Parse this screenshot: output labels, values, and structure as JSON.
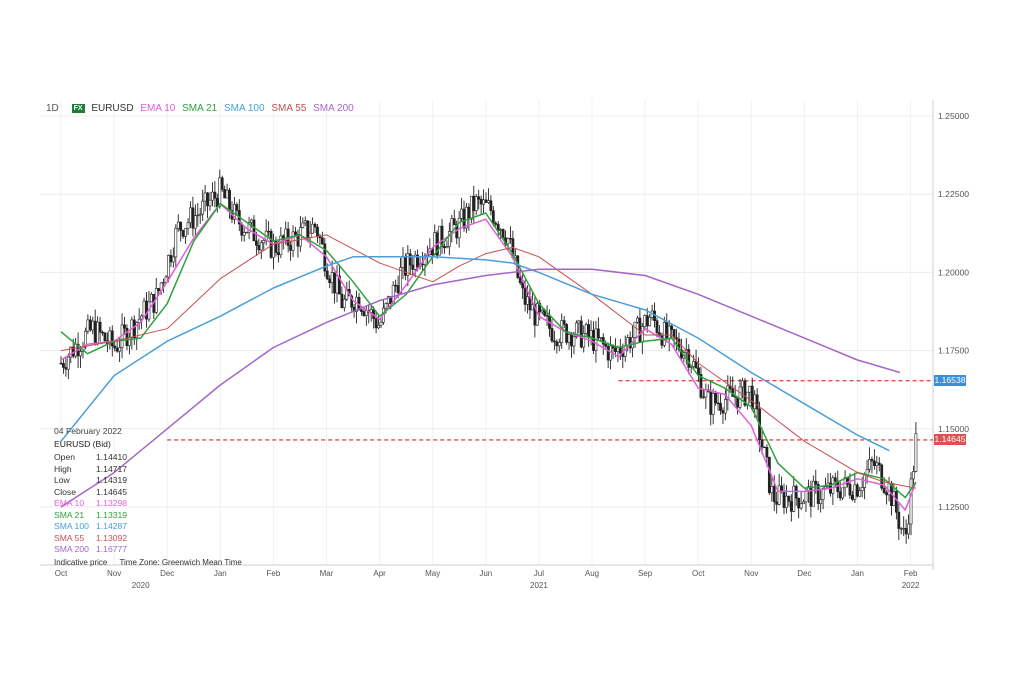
{
  "header": {
    "timeframe": "1D",
    "symbol_badge": "FX",
    "symbol": "EURUSD",
    "indicators": [
      {
        "label": "EMA 10",
        "color": "#e05fd8"
      },
      {
        "label": "SMA 21",
        "color": "#2ea23a"
      },
      {
        "label": "SMA 100",
        "color": "#4a9fd8"
      },
      {
        "label": "SMA 55",
        "color": "#c85050"
      },
      {
        "label": "SMA 200",
        "color": "#a565c8"
      }
    ]
  },
  "info_panel": {
    "date": "04 February 2022",
    "instrument": "EURUSD (Bid)",
    "rows": [
      {
        "label": "Open",
        "value": "1.14410",
        "color": "#333333"
      },
      {
        "label": "High",
        "value": "1.14717",
        "color": "#333333"
      },
      {
        "label": "Low",
        "value": "1.14319",
        "color": "#333333"
      },
      {
        "label": "Close",
        "value": "1.14645",
        "color": "#333333"
      },
      {
        "label": "EMA 10",
        "value": "1.13298",
        "color": "#e05fd8"
      },
      {
        "label": "SMA 21",
        "value": "1.13319",
        "color": "#2ea23a"
      },
      {
        "label": "SMA 100",
        "value": "1.14287",
        "color": "#4a9fd8"
      },
      {
        "label": "SMA 55",
        "value": "1.13092",
        "color": "#c85050"
      },
      {
        "label": "SMA 200",
        "value": "1.16777",
        "color": "#a565c8"
      }
    ]
  },
  "footer_notes": [
    "Indicative price",
    "Time Zone: Greenwich Mean Time"
  ],
  "price_badges": [
    {
      "label": "1.16538",
      "value": 1.16538,
      "color": "#3b8fd8"
    },
    {
      "label": "1.14645",
      "value": 1.14645,
      "color": "#e05050"
    }
  ],
  "chart_data": {
    "type": "line",
    "title": "",
    "xlabel": "",
    "ylabel": "",
    "ylim": [
      1.105,
      1.255
    ],
    "y_ticks": [
      "1.25000",
      "1.22500",
      "1.20000",
      "1.17500",
      "1.15000",
      "1.12500"
    ],
    "y_tick_values": [
      1.25,
      1.225,
      1.2,
      1.175,
      1.15,
      1.125
    ],
    "x_tick_labels": [
      "Oct",
      "Nov",
      "Dec",
      "Jan",
      "Feb",
      "Mar",
      "Apr",
      "May",
      "Jun",
      "Jul",
      "Aug",
      "Sep",
      "Oct",
      "Nov",
      "Dec",
      "Jan",
      "Feb"
    ],
    "x_tick_positions": [
      0,
      1,
      2,
      3,
      4,
      5,
      6,
      7,
      8,
      9,
      10,
      11,
      12,
      13,
      14,
      15,
      16
    ],
    "year_labels": [
      {
        "label": "2020",
        "at": 1.5
      },
      {
        "label": "2021",
        "at": 9
      },
      {
        "label": "2022",
        "at": 16
      }
    ],
    "horizontal_levels": [
      {
        "value": 1.16538,
        "from_month": 10.5,
        "color": "#e05050"
      },
      {
        "value": 1.14645,
        "from_month": 2.0,
        "color": "#e05050"
      }
    ],
    "price": {
      "months": [
        0,
        0.3,
        0.6,
        1.0,
        1.4,
        1.8,
        2.2,
        2.6,
        3.0,
        3.3,
        3.6,
        4.0,
        4.4,
        4.8,
        5.0,
        5.3,
        5.6,
        6.0,
        6.4,
        6.8,
        7.2,
        7.5,
        7.8,
        8.1,
        8.4,
        8.7,
        9.0,
        9.3,
        9.6,
        10.0,
        10.4,
        10.8,
        11.1,
        11.4,
        11.8,
        12.2,
        12.6,
        13.0,
        13.4,
        13.8,
        14.2,
        14.6,
        15.0,
        15.3,
        15.6,
        15.9,
        16.1
      ],
      "close": [
        1.171,
        1.177,
        1.182,
        1.176,
        1.184,
        1.192,
        1.214,
        1.219,
        1.226,
        1.217,
        1.213,
        1.208,
        1.211,
        1.215,
        1.203,
        1.19,
        1.192,
        1.183,
        1.2,
        1.207,
        1.211,
        1.215,
        1.222,
        1.22,
        1.212,
        1.192,
        1.185,
        1.181,
        1.181,
        1.179,
        1.174,
        1.18,
        1.186,
        1.179,
        1.175,
        1.158,
        1.16,
        1.162,
        1.128,
        1.128,
        1.129,
        1.131,
        1.132,
        1.139,
        1.131,
        1.114,
        1.146
      ]
    },
    "series": [
      {
        "name": "EMA 10",
        "color": "#e05fd8",
        "months": [
          0,
          0.5,
          1.0,
          1.5,
          2.0,
          2.5,
          3.0,
          3.5,
          4.0,
          4.5,
          5.0,
          5.5,
          6.0,
          6.5,
          7.0,
          7.5,
          8.0,
          8.5,
          9.0,
          9.5,
          10.0,
          10.5,
          11.0,
          11.5,
          12.0,
          12.5,
          13.0,
          13.5,
          14.0,
          14.5,
          15.0,
          15.5,
          15.9,
          16.1
        ],
        "values": [
          1.172,
          1.177,
          1.178,
          1.184,
          1.197,
          1.211,
          1.222,
          1.214,
          1.209,
          1.212,
          1.205,
          1.191,
          1.185,
          1.196,
          1.208,
          1.214,
          1.217,
          1.205,
          1.186,
          1.181,
          1.178,
          1.173,
          1.182,
          1.177,
          1.163,
          1.161,
          1.151,
          1.13,
          1.13,
          1.131,
          1.134,
          1.132,
          1.124,
          1.133
        ]
      },
      {
        "name": "SMA 21",
        "color": "#2ea23a",
        "months": [
          0,
          0.5,
          1.0,
          1.5,
          2.0,
          2.5,
          3.0,
          3.5,
          4.0,
          4.5,
          5.0,
          5.5,
          6.0,
          6.5,
          7.0,
          7.5,
          8.0,
          8.5,
          9.0,
          9.5,
          10.0,
          10.5,
          11.0,
          11.5,
          12.0,
          12.5,
          13.0,
          13.5,
          14.0,
          14.5,
          15.0,
          15.5,
          15.9,
          16.1
        ],
        "values": [
          1.181,
          1.174,
          1.178,
          1.179,
          1.19,
          1.21,
          1.222,
          1.216,
          1.21,
          1.212,
          1.207,
          1.197,
          1.186,
          1.193,
          1.205,
          1.216,
          1.219,
          1.206,
          1.19,
          1.181,
          1.179,
          1.176,
          1.178,
          1.179,
          1.167,
          1.163,
          1.157,
          1.139,
          1.131,
          1.132,
          1.136,
          1.134,
          1.128,
          1.133
        ]
      },
      {
        "name": "SMA 55",
        "color": "#c85050",
        "months": [
          0,
          1.0,
          2.0,
          3.0,
          4.0,
          5.0,
          6.0,
          7.0,
          7.5,
          8.0,
          8.5,
          9.0,
          10.0,
          11.0,
          11.5,
          12.0,
          13.0,
          14.0,
          15.0,
          15.5,
          16.1
        ],
        "values": [
          1.175,
          1.178,
          1.182,
          1.198,
          1.209,
          1.212,
          1.203,
          1.197,
          1.202,
          1.206,
          1.208,
          1.205,
          1.193,
          1.18,
          1.18,
          1.171,
          1.159,
          1.146,
          1.136,
          1.133,
          1.131
        ]
      },
      {
        "name": "SMA 100",
        "color": "#4a9fd8",
        "months": [
          0,
          1.0,
          2.0,
          3.0,
          4.0,
          5.0,
          5.5,
          6.0,
          7.0,
          8.0,
          8.5,
          9.0,
          10.0,
          11.0,
          12.0,
          13.0,
          14.0,
          15.0,
          15.6
        ],
        "values": [
          1.146,
          1.167,
          1.178,
          1.186,
          1.195,
          1.202,
          1.205,
          1.205,
          1.205,
          1.204,
          1.203,
          1.2,
          1.193,
          1.188,
          1.179,
          1.168,
          1.158,
          1.148,
          1.143
        ]
      },
      {
        "name": "SMA 200",
        "color": "#a565c8",
        "months": [
          0,
          1.0,
          2.0,
          3.0,
          4.0,
          5.0,
          6.0,
          7.0,
          8.0,
          9.0,
          10.0,
          11.0,
          12.0,
          13.0,
          14.0,
          15.0,
          15.8
        ],
        "values": [
          1.125,
          1.136,
          1.15,
          1.164,
          1.176,
          1.184,
          1.191,
          1.196,
          1.199,
          1.201,
          1.201,
          1.199,
          1.193,
          1.186,
          1.179,
          1.172,
          1.168
        ]
      }
    ]
  }
}
